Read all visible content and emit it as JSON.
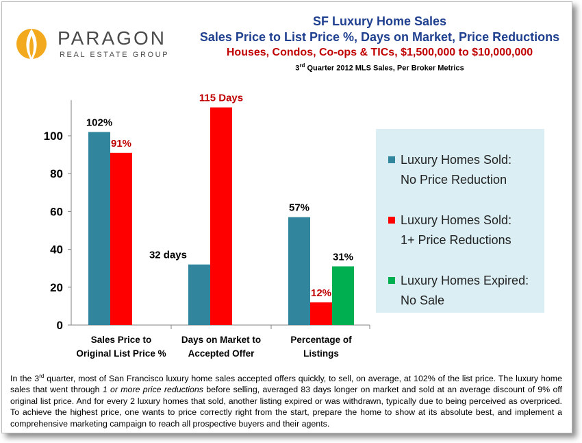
{
  "logo": {
    "word": "PARAGON",
    "sub": "REAL ESTATE GROUP"
  },
  "titles": {
    "line1": "SF Luxury Home Sales",
    "line2": "Sales Price to List Price %, Days on Market, Price Reductions",
    "line3": "Houses, Condos, Co-ops & TICs, $1,500,000 to $10,000,000",
    "line4_pre": "3",
    "line4_sup": "rd",
    "line4_post": " Quarter 2012 MLS Sales, Per Broker Metrics"
  },
  "colors": {
    "teal": "#31859c",
    "red": "#ff0000",
    "green": "#00b050",
    "title_blue": "#1f3f8f",
    "dark_red": "#c00000",
    "legend_bg": "#daeef3"
  },
  "chart_data": {
    "type": "bar",
    "categories": [
      [
        "Sales Price to",
        "Original List Price %"
      ],
      [
        "Days on Market to",
        "Accepted Offer"
      ],
      [
        "Percentage of",
        "Listings"
      ]
    ],
    "series": [
      {
        "name": "Luxury Homes Sold: No Price Reduction",
        "color": "#31859c",
        "values": [
          102,
          32,
          57
        ],
        "labels": [
          "102%",
          "32 days",
          "57%"
        ]
      },
      {
        "name": "Luxury Homes Sold: 1+ Price Reductions",
        "color": "#ff0000",
        "values": [
          91,
          115,
          12
        ],
        "labels": [
          "91%",
          "115 Days",
          "12%"
        ]
      },
      {
        "name": "Luxury Homes Expired: No Sale",
        "color": "#00b050",
        "values": [
          null,
          null,
          31
        ],
        "labels": [
          "",
          "",
          "31%"
        ]
      }
    ],
    "y_ticks": [
      0,
      20,
      40,
      60,
      80,
      100
    ],
    "ylim": [
      0,
      115
    ],
    "grid": false,
    "legend_position": "right"
  },
  "legend": [
    {
      "line1": "Luxury Homes Sold:",
      "line2": "No Price Reduction",
      "color": "#31859c"
    },
    {
      "line1": "Luxury Homes Sold:",
      "line2": "1+ Price Reductions",
      "color": "#ff0000"
    },
    {
      "line1": "Luxury Homes Expired:",
      "line2": "No Sale",
      "color": "#00b050"
    }
  ],
  "caption": {
    "p1": "In the ",
    "sup": "rd",
    "p1b": "3",
    "p2": " quarter, most of San Francisco luxury home sales accepted offers quickly, to sell, on average, at 102% of the list price. The luxury home sales that went through ",
    "em": "1 or more price reductions",
    "p3": " before selling, averaged 83 days longer on market and sold at an average discount of 9% off original list price. And for every 2 luxury homes that sold, another listing expired or was withdrawn, typically due to being perceived as overpriced. To achieve the highest price, one wants to price correctly right from the start, prepare the home to show at its absolute best, and implement a comprehensive marketing campaign to reach all prospective buyers and their agents."
  }
}
